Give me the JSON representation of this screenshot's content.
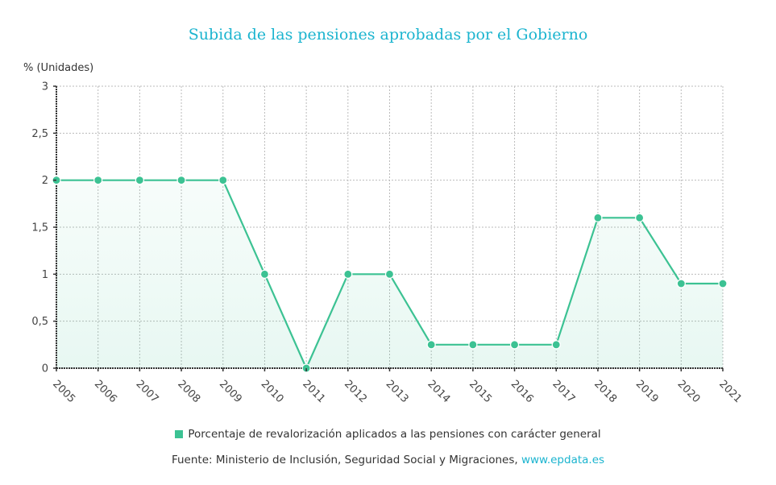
{
  "title": "Subida de las pensiones aprobadas por el Gobierno",
  "y_unit_label": "% (Unidades)",
  "legend": {
    "label": "Porcentaje de revalorización aplicados a las pensiones con carácter general",
    "color": "#3cc293"
  },
  "source": {
    "prefix": "Fuente: Ministerio de Inclusión, Seguridad Social y Migraciones, ",
    "link_text": "www.epdata.es"
  },
  "colors": {
    "title": "#1bb4cf",
    "line": "#3cc293",
    "fill": "#e8f7f1",
    "grid": "#bbbbbb",
    "axis": "#333333"
  },
  "chart_data": {
    "type": "area",
    "title": "Subida de las pensiones aprobadas por el Gobierno",
    "xlabel": "",
    "ylabel": "% (Unidades)",
    "ylim": [
      0,
      3
    ],
    "yticks": [
      "0",
      "0,5",
      "1",
      "1,5",
      "2",
      "2,5",
      "3"
    ],
    "ytick_values": [
      0,
      0.5,
      1,
      1.5,
      2,
      2.5,
      3
    ],
    "grid": true,
    "legend_position": "bottom",
    "categories": [
      "2005",
      "2006",
      "2007",
      "2008",
      "2009",
      "2010",
      "2011",
      "2012",
      "2013",
      "2014",
      "2015",
      "2016",
      "2017",
      "2018",
      "2019",
      "2020",
      "2021"
    ],
    "series": [
      {
        "name": "Porcentaje de revalorización aplicados a las pensiones con carácter general",
        "values": [
          2,
          2,
          2,
          2,
          2,
          1,
          0,
          1,
          1,
          0.25,
          0.25,
          0.25,
          0.25,
          1.6,
          1.6,
          0.9,
          0.9
        ]
      }
    ]
  }
}
